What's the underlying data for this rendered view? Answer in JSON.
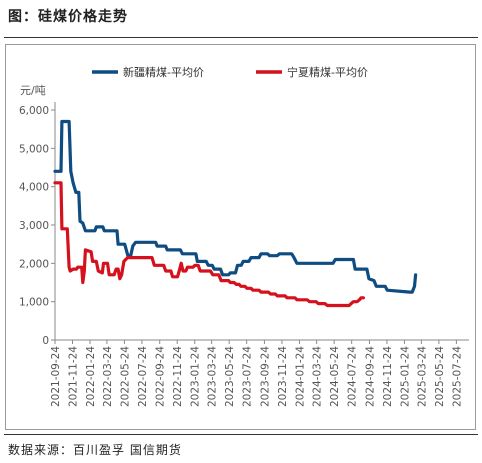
{
  "figure": {
    "title": "图：硅煤价格走势",
    "source": "数据来源：百川盈孚 国信期货"
  },
  "chart_data": {
    "type": "line",
    "unit_label": "元/吨",
    "ylim": [
      0,
      6000
    ],
    "yticks": [
      "0",
      "1,000",
      "2,000",
      "3,000",
      "4,000",
      "5,000",
      "6,000"
    ],
    "ytick_values": [
      0,
      1000,
      2000,
      3000,
      4000,
      5000,
      6000
    ],
    "xlim": [
      "2021-09-24",
      "2025-09-06"
    ],
    "xticks": [
      "2021-09-24",
      "2021-11-24",
      "2022-01-24",
      "2022-03-24",
      "2022-05-24",
      "2022-07-24",
      "2022-09-24",
      "2022-11-24",
      "2023-01-24",
      "2023-03-24",
      "2023-05-24",
      "2023-07-24",
      "2023-09-24",
      "2023-11-24",
      "2024-01-24",
      "2024-03-24",
      "2024-05-24",
      "2024-07-24",
      "2024-09-24",
      "2024-11-24",
      "2025-01-24",
      "2025-03-24",
      "2025-05-24",
      "2025-07-24"
    ],
    "legend_position": "top",
    "grid": false,
    "series": [
      {
        "name": "新疆精煤-平均价",
        "color": "#0f4c81",
        "points": [
          [
            "2021-09-24",
            4400
          ],
          [
            "2021-10-15",
            4400
          ],
          [
            "2021-10-18",
            5700
          ],
          [
            "2021-11-12",
            5700
          ],
          [
            "2021-11-18",
            4400
          ],
          [
            "2021-11-26",
            4100
          ],
          [
            "2021-12-06",
            3850
          ],
          [
            "2021-12-16",
            3850
          ],
          [
            "2021-12-20",
            3100
          ],
          [
            "2021-12-30",
            3050
          ],
          [
            "2022-01-08",
            2850
          ],
          [
            "2022-02-10",
            2850
          ],
          [
            "2022-02-15",
            2950
          ],
          [
            "2022-03-10",
            2950
          ],
          [
            "2022-03-15",
            2850
          ],
          [
            "2022-04-28",
            2850
          ],
          [
            "2022-05-02",
            2500
          ],
          [
            "2022-05-25",
            2500
          ],
          [
            "2022-06-05",
            2200
          ],
          [
            "2022-06-15",
            2200
          ],
          [
            "2022-06-22",
            2450
          ],
          [
            "2022-07-02",
            2550
          ],
          [
            "2022-09-10",
            2550
          ],
          [
            "2022-09-15",
            2450
          ],
          [
            "2022-10-15",
            2450
          ],
          [
            "2022-10-20",
            2350
          ],
          [
            "2022-12-05",
            2350
          ],
          [
            "2022-12-12",
            2250
          ],
          [
            "2023-01-28",
            2250
          ],
          [
            "2023-02-02",
            2050
          ],
          [
            "2023-03-05",
            2050
          ],
          [
            "2023-03-12",
            1950
          ],
          [
            "2023-03-26",
            1950
          ],
          [
            "2023-04-02",
            1850
          ],
          [
            "2023-04-24",
            1850
          ],
          [
            "2023-05-01",
            1700
          ],
          [
            "2023-05-22",
            1700
          ],
          [
            "2023-05-28",
            1750
          ],
          [
            "2023-06-15",
            1750
          ],
          [
            "2023-06-22",
            1950
          ],
          [
            "2023-07-05",
            1950
          ],
          [
            "2023-07-12",
            2050
          ],
          [
            "2023-08-01",
            2050
          ],
          [
            "2023-08-08",
            2150
          ],
          [
            "2023-09-05",
            2150
          ],
          [
            "2023-09-12",
            2250
          ],
          [
            "2023-10-05",
            2250
          ],
          [
            "2023-10-12",
            2200
          ],
          [
            "2023-11-08",
            2200
          ],
          [
            "2023-11-15",
            2250
          ],
          [
            "2023-12-28",
            2250
          ],
          [
            "2024-01-05",
            2150
          ],
          [
            "2024-01-15",
            2000
          ],
          [
            "2024-05-20",
            2000
          ],
          [
            "2024-05-28",
            2100
          ],
          [
            "2024-07-30",
            2100
          ],
          [
            "2024-08-05",
            1850
          ],
          [
            "2024-09-15",
            1850
          ],
          [
            "2024-09-22",
            1600
          ],
          [
            "2024-10-10",
            1550
          ],
          [
            "2024-10-18",
            1400
          ],
          [
            "2024-11-18",
            1400
          ],
          [
            "2024-11-25",
            1300
          ],
          [
            "2025-02-12",
            1250
          ],
          [
            "2025-02-20",
            1250
          ],
          [
            "2025-02-28",
            1400
          ],
          [
            "2025-03-04",
            1700
          ]
        ]
      },
      {
        "name": "宁夏精煤-平均价",
        "color": "#d6111e",
        "points": [
          [
            "2021-09-24",
            4100
          ],
          [
            "2021-10-15",
            4100
          ],
          [
            "2021-10-18",
            2900
          ],
          [
            "2021-11-06",
            2900
          ],
          [
            "2021-11-12",
            1900
          ],
          [
            "2021-11-16",
            1800
          ],
          [
            "2021-11-26",
            1850
          ],
          [
            "2021-12-08",
            1850
          ],
          [
            "2021-12-12",
            1900
          ],
          [
            "2021-12-26",
            1900
          ],
          [
            "2021-12-30",
            1500
          ],
          [
            "2022-01-04",
            1800
          ],
          [
            "2022-01-08",
            2350
          ],
          [
            "2022-01-28",
            2300
          ],
          [
            "2022-02-02",
            2050
          ],
          [
            "2022-02-15",
            2050
          ],
          [
            "2022-02-22",
            1800
          ],
          [
            "2022-03-08",
            1750
          ],
          [
            "2022-03-12",
            2000
          ],
          [
            "2022-03-26",
            2000
          ],
          [
            "2022-04-01",
            1700
          ],
          [
            "2022-04-18",
            1700
          ],
          [
            "2022-04-25",
            1850
          ],
          [
            "2022-05-02",
            1850
          ],
          [
            "2022-05-08",
            1600
          ],
          [
            "2022-05-14",
            1700
          ],
          [
            "2022-05-22",
            2050
          ],
          [
            "2022-06-04",
            2150
          ],
          [
            "2022-08-28",
            2150
          ],
          [
            "2022-09-05",
            1950
          ],
          [
            "2022-10-08",
            1950
          ],
          [
            "2022-10-15",
            1800
          ],
          [
            "2022-11-02",
            1800
          ],
          [
            "2022-11-08",
            1650
          ],
          [
            "2022-11-25",
            1650
          ],
          [
            "2022-12-01",
            1800
          ],
          [
            "2022-12-08",
            2000
          ],
          [
            "2022-12-14",
            1800
          ],
          [
            "2022-12-24",
            1800
          ],
          [
            "2022-12-30",
            1900
          ],
          [
            "2023-01-18",
            1900
          ],
          [
            "2023-01-25",
            1950
          ],
          [
            "2023-02-05",
            1950
          ],
          [
            "2023-02-12",
            1800
          ],
          [
            "2023-03-20",
            1800
          ],
          [
            "2023-03-28",
            1700
          ],
          [
            "2023-04-18",
            1700
          ],
          [
            "2023-04-26",
            1550
          ],
          [
            "2023-05-22",
            1550
          ],
          [
            "2023-05-28",
            1500
          ],
          [
            "2023-06-10",
            1500
          ],
          [
            "2023-06-18",
            1450
          ],
          [
            "2023-06-28",
            1450
          ],
          [
            "2023-07-04",
            1400
          ],
          [
            "2023-07-18",
            1400
          ],
          [
            "2023-07-25",
            1350
          ],
          [
            "2023-08-08",
            1350
          ],
          [
            "2023-08-15",
            1300
          ],
          [
            "2023-09-05",
            1300
          ],
          [
            "2023-09-12",
            1250
          ],
          [
            "2023-10-08",
            1250
          ],
          [
            "2023-10-15",
            1200
          ],
          [
            "2023-11-01",
            1200
          ],
          [
            "2023-11-08",
            1150
          ],
          [
            "2023-12-05",
            1150
          ],
          [
            "2023-12-12",
            1100
          ],
          [
            "2024-01-08",
            1100
          ],
          [
            "2024-01-15",
            1050
          ],
          [
            "2024-02-20",
            1050
          ],
          [
            "2024-02-28",
            1000
          ],
          [
            "2024-03-22",
            1000
          ],
          [
            "2024-03-30",
            950
          ],
          [
            "2024-04-22",
            950
          ],
          [
            "2024-04-30",
            900
          ],
          [
            "2024-07-15",
            900
          ],
          [
            "2024-07-22",
            950
          ],
          [
            "2024-07-30",
            1000
          ],
          [
            "2024-08-12",
            1000
          ],
          [
            "2024-08-20",
            1050
          ],
          [
            "2024-08-26",
            1100
          ],
          [
            "2024-09-03",
            1100
          ]
        ]
      }
    ]
  }
}
